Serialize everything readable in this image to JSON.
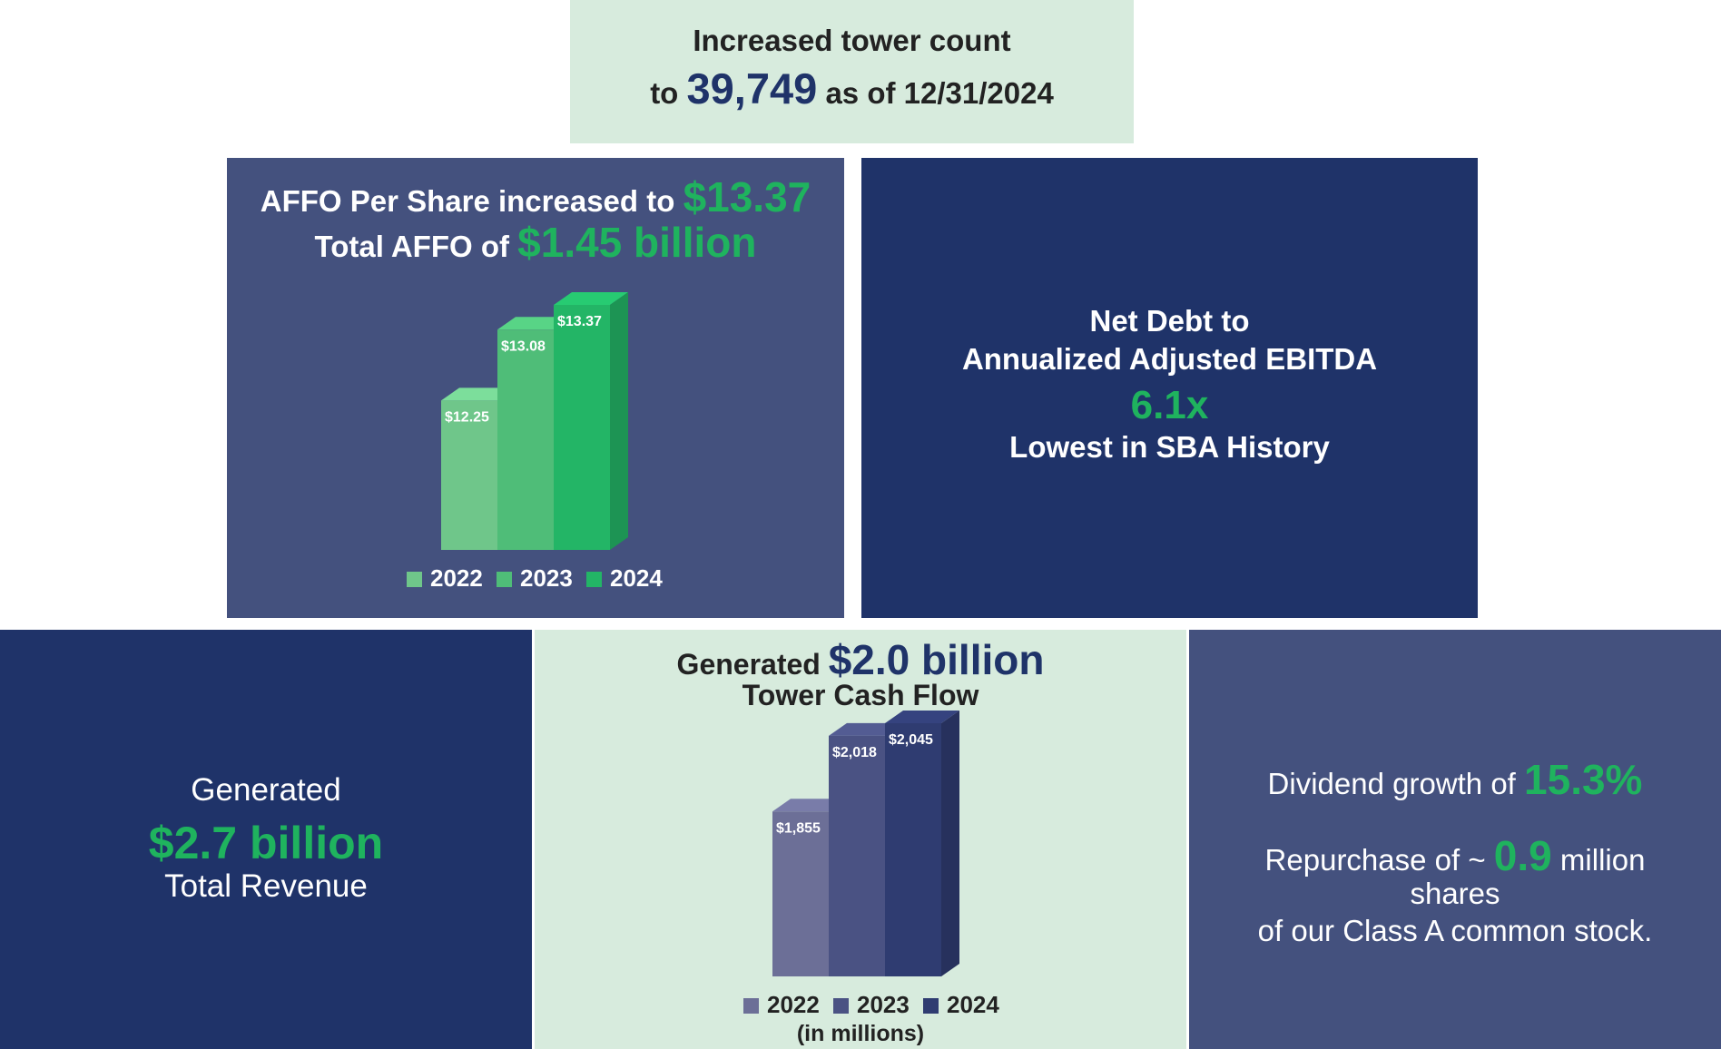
{
  "tower": {
    "line1": "Increased tower count",
    "prefix": "to",
    "count": "39,749",
    "suffix": "as of 12/31/2024"
  },
  "affo": {
    "line1_text": "AFFO Per Share increased to",
    "line1_value": "$13.37",
    "line2_text": "Total AFFO of",
    "line2_value": "$1.45 billion"
  },
  "debt": {
    "line1": "Net Debt to",
    "line2": "Annualized Adjusted EBITDA",
    "value": "6.1x",
    "line4": "Lowest in SBA History"
  },
  "revenue": {
    "line1": "Generated",
    "value": "$2.7 billion",
    "line3": "Total Revenue"
  },
  "tower_cash_flow": {
    "line1_text": "Generated",
    "line1_value": "$2.0 billion",
    "line2": "Tower Cash Flow",
    "note": "(in millions)"
  },
  "dividend": {
    "growth_text": "Dividend growth of",
    "growth_value": "15.3%",
    "repurchase_prefix": "Repurchase of ~",
    "repurchase_value": "0.9",
    "repurchase_suffix": "million",
    "line3": "shares",
    "line4": "of our Class A common stock."
  },
  "colors": {
    "navy": "#1f3369",
    "slate": "#44517e",
    "mint": "#d7ebdd",
    "green": "#1fb35e"
  },
  "chart_data": [
    {
      "type": "bar",
      "title": "AFFO Per Share",
      "categories": [
        "2022",
        "2023",
        "2024"
      ],
      "values": [
        12.25,
        13.08,
        13.37
      ],
      "labels": [
        "$12.25",
        "$13.08",
        "$13.37"
      ],
      "legend": [
        "2022",
        "2023",
        "2024"
      ],
      "ylim": [
        0,
        13.37
      ],
      "colors": [
        "#6fc68a",
        "#4fbd78",
        "#23b566"
      ],
      "legend_position": "bottom"
    },
    {
      "type": "bar",
      "title": "Tower Cash Flow",
      "categories": [
        "2022",
        "2023",
        "2024"
      ],
      "values": [
        1855,
        2018,
        2045
      ],
      "labels": [
        "$1,855",
        "$2,018",
        "$2,045"
      ],
      "legend": [
        "2022",
        "2023",
        "2024"
      ],
      "ylim": [
        0,
        2045
      ],
      "colors": [
        "#6c6f97",
        "#4a5283",
        "#2f3c71"
      ],
      "legend_position": "bottom",
      "unit_note": "(in millions)"
    }
  ]
}
